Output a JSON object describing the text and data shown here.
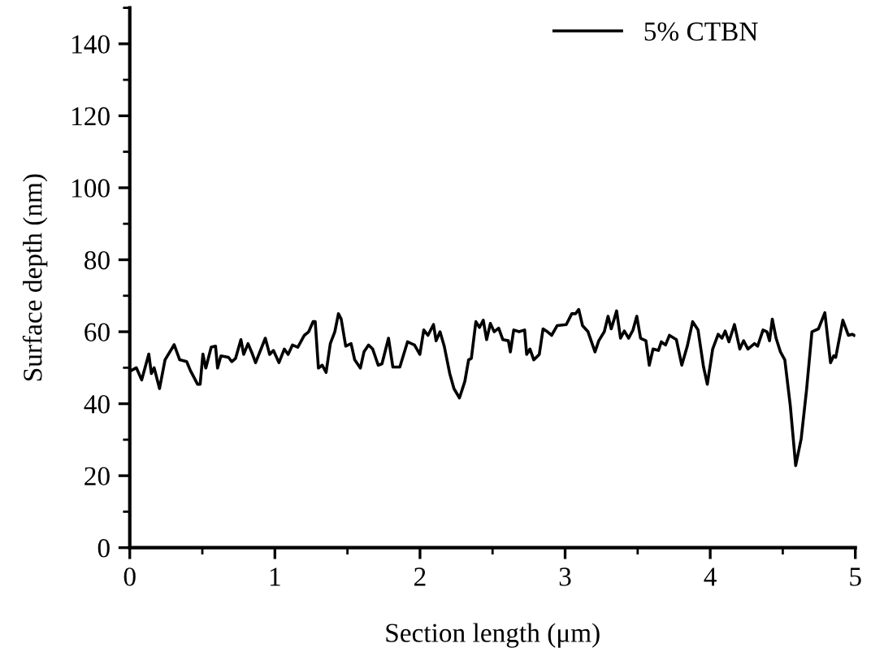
{
  "chart_data": {
    "type": "line",
    "xlabel": "Section length (μm)",
    "ylabel": "Surface depth (nm)",
    "xlim": [
      0,
      5
    ],
    "ylim": [
      0,
      150
    ],
    "xticks": [
      0,
      1,
      2,
      3,
      4,
      5
    ],
    "yticks": [
      0,
      20,
      40,
      60,
      80,
      100,
      120,
      140
    ],
    "grid": false,
    "legend": "top right",
    "marker": "none",
    "line_style": "solid",
    "series": [
      {
        "name": "5% CTBN",
        "color": "#000000",
        "x": [
          0,
          0.045,
          0.082,
          0.131,
          0.149,
          0.168,
          0.205,
          0.243,
          0.306,
          0.344,
          0.392,
          0.418,
          0.467,
          0.485,
          0.504,
          0.524,
          0.561,
          0.591,
          0.605,
          0.628,
          0.68,
          0.703,
          0.729,
          0.766,
          0.785,
          0.815,
          0.841,
          0.867,
          0.934,
          0.964,
          0.99,
          1.028,
          1.065,
          1.091,
          1.121,
          1.158,
          1.203,
          1.233,
          1.263,
          1.278,
          1.3,
          1.326,
          1.353,
          1.382,
          1.413,
          1.438,
          1.457,
          1.488,
          1.525,
          1.55,
          1.589,
          1.614,
          1.645,
          1.674,
          1.712,
          1.738,
          1.783,
          1.813,
          1.861,
          1.914,
          1.962,
          1.999,
          2.026,
          2.055,
          2.093,
          2.111,
          2.138,
          2.167,
          2.205,
          2.234,
          2.272,
          2.309,
          2.335,
          2.354,
          2.385,
          2.41,
          2.436,
          2.459,
          2.485,
          2.511,
          2.542,
          2.571,
          2.609,
          2.623,
          2.646,
          2.683,
          2.721,
          2.735,
          2.758,
          2.784,
          2.822,
          2.848,
          2.878,
          2.907,
          2.945,
          3.008,
          3.046,
          3.072,
          3.094,
          3.12,
          3.158,
          3.206,
          3.232,
          3.27,
          3.296,
          3.318,
          3.355,
          3.382,
          3.408,
          3.438,
          3.468,
          3.494,
          3.52,
          3.557,
          3.58,
          3.606,
          3.643,
          3.663,
          3.692,
          3.719,
          3.767,
          3.804,
          3.842,
          3.879,
          3.916,
          3.954,
          3.98,
          4.017,
          4.055,
          4.081,
          4.103,
          4.129,
          4.167,
          4.204,
          4.23,
          4.26,
          4.305,
          4.327,
          4.364,
          4.391,
          4.409,
          4.428,
          4.454,
          4.484,
          4.514,
          4.552,
          4.589,
          4.627,
          4.664,
          4.701,
          4.746,
          4.79,
          4.829,
          4.851,
          4.865,
          4.914,
          4.952,
          4.978,
          4.992
        ],
        "values": [
          49,
          50,
          46.6,
          53.8,
          48.4,
          50,
          44.2,
          52.2,
          56.4,
          52.2,
          51.7,
          49.2,
          45.4,
          45.4,
          53.8,
          49.9,
          55.7,
          56,
          49.9,
          53.3,
          52.9,
          51.7,
          52.6,
          57.8,
          53.7,
          56.7,
          54.2,
          51.4,
          58.2,
          53.7,
          54.8,
          51.4,
          55.2,
          53.7,
          56.3,
          55.7,
          59,
          60,
          62.8,
          62.8,
          49.9,
          50.7,
          48.7,
          56.7,
          60,
          65,
          63.5,
          56,
          56.7,
          52.2,
          49.9,
          54.4,
          56.3,
          55.2,
          50.7,
          51.1,
          58.2,
          50.2,
          50.2,
          57.2,
          56.3,
          53.7,
          60.5,
          59,
          62,
          57.5,
          60,
          56,
          48.4,
          44.2,
          41.6,
          46.2,
          52.2,
          52.6,
          62.8,
          61.2,
          63.2,
          57.8,
          62.3,
          60,
          61,
          57.8,
          57.5,
          54.4,
          60.5,
          60,
          60.5,
          53.7,
          55.2,
          52.2,
          53.7,
          60.8,
          60,
          59,
          61.7,
          62,
          65,
          65,
          66.2,
          61.7,
          60,
          54.4,
          57.5,
          60,
          64.3,
          60.8,
          65.8,
          58.2,
          60.2,
          58.2,
          60.5,
          64.3,
          58.2,
          57.5,
          50.7,
          55.2,
          54.8,
          57.2,
          56.3,
          59,
          57.8,
          50.7,
          56,
          62.8,
          60.5,
          50.2,
          45.4,
          55.2,
          59.3,
          58.2,
          60.2,
          57.2,
          62,
          55.2,
          57.5,
          55.2,
          56.7,
          56,
          60.5,
          60,
          57.5,
          63.5,
          58.2,
          54.4,
          52.2,
          39.4,
          22.8,
          30.3,
          43.9,
          60,
          60.8,
          65.3,
          51.4,
          53.3,
          52.9,
          63.2,
          59,
          59.3,
          59
        ]
      }
    ]
  }
}
